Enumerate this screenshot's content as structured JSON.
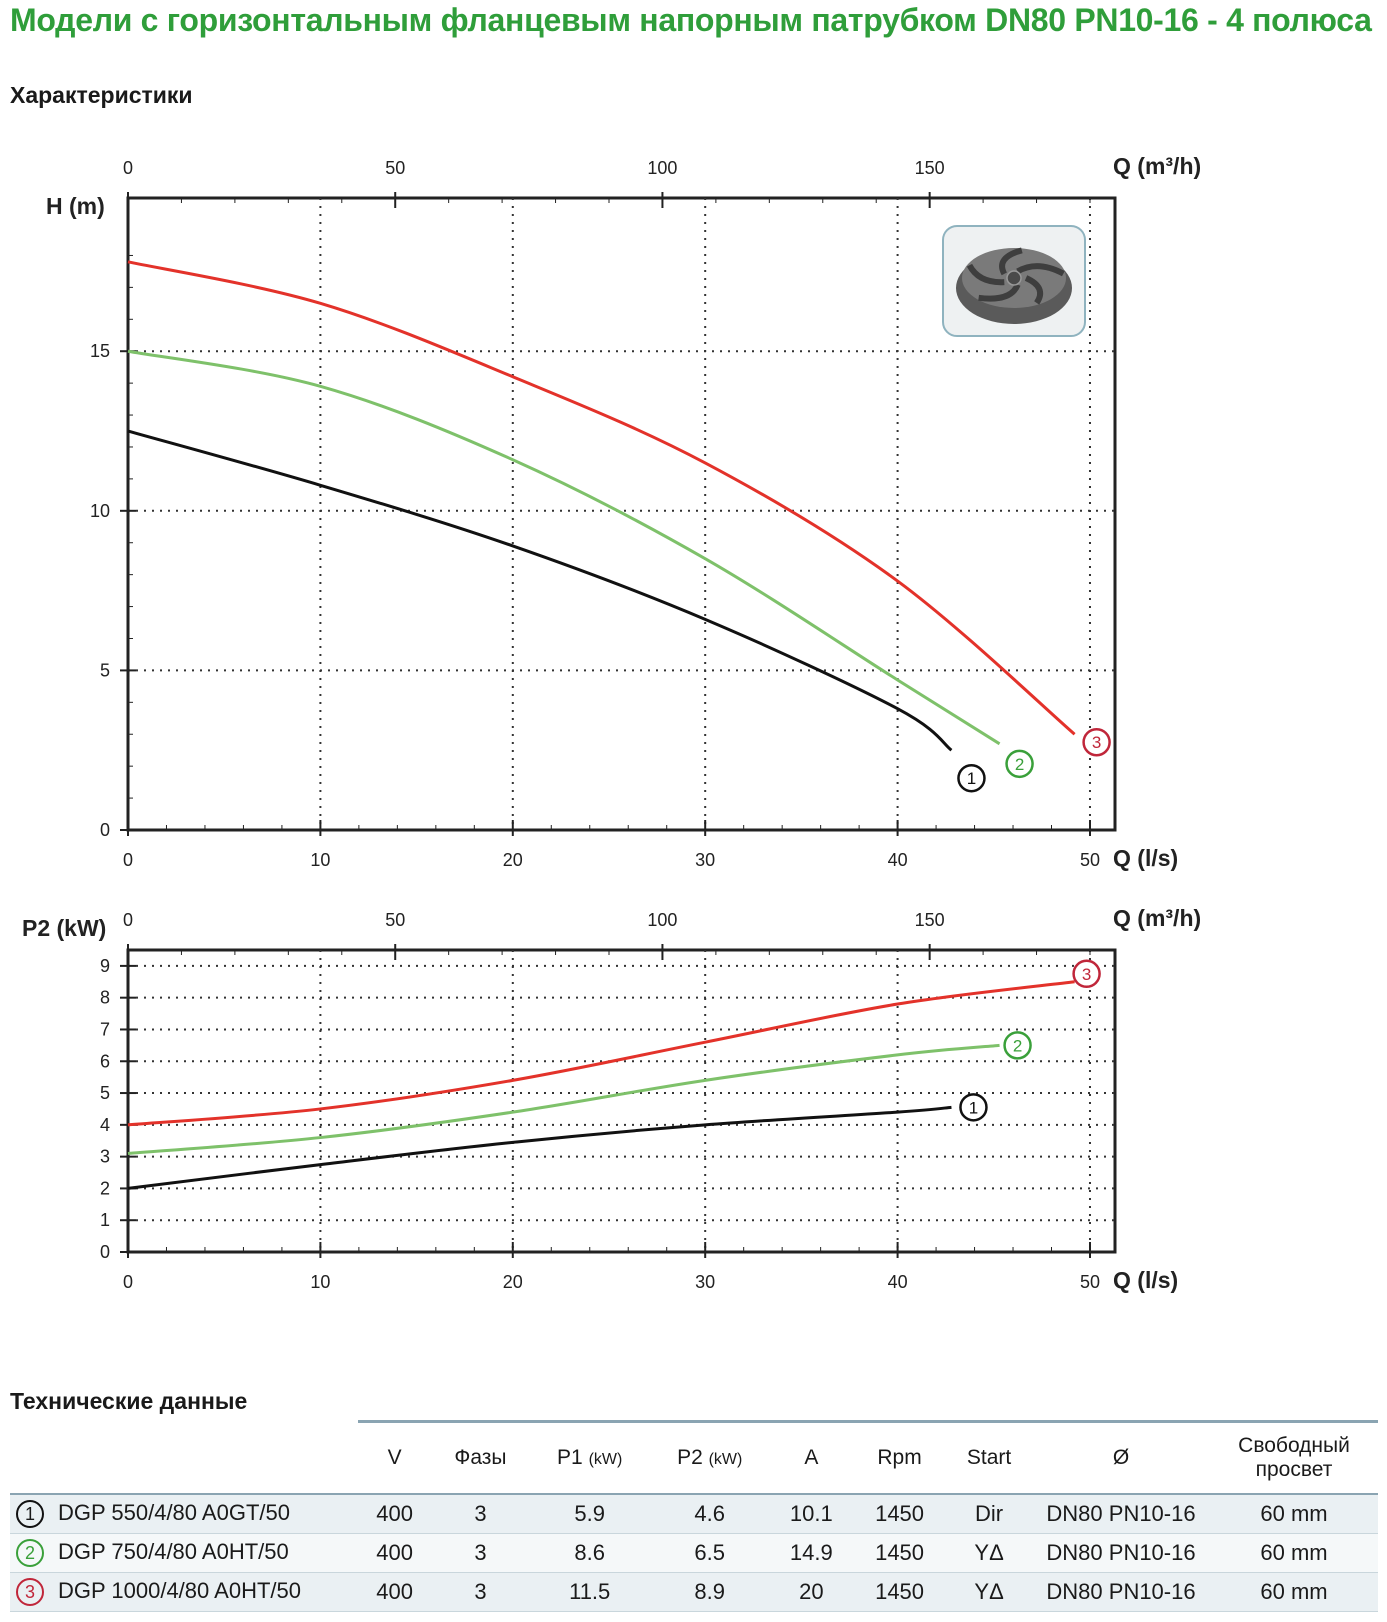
{
  "page": {
    "title": "Модели с горизонтальным фланцевым напорным патрубком DN80 PN10-16 - 4 полюса",
    "subtitle": "Характеристики",
    "tech_title": "Технические данные"
  },
  "colors": {
    "curve1": "#111111",
    "curve2": "#7ec16a",
    "curve3": "#e3322a",
    "title": "#2f9e3a",
    "badge2": "#3aa03a",
    "badge3": "#c0263a"
  },
  "chart_data": [
    {
      "type": "line",
      "title": "",
      "xlabel": "Q (l/s)",
      "x2label": "Q (m³/h)",
      "ylabel": "H (m)",
      "xlim": [
        0,
        51.3
      ],
      "ylim": [
        0,
        19.8
      ],
      "xticks": [
        0,
        10,
        20,
        30,
        40,
        50
      ],
      "x2ticks": [
        0,
        50,
        100,
        150
      ],
      "yticks": [
        0,
        5,
        10,
        15
      ],
      "grid": true,
      "series": [
        {
          "name": "1",
          "points": [
            [
              0,
              12.5
            ],
            [
              10,
              10.8
            ],
            [
              20,
              8.9
            ],
            [
              30,
              6.6
            ],
            [
              40,
              3.8
            ],
            [
              42.8,
              2.5
            ]
          ]
        },
        {
          "name": "2",
          "points": [
            [
              0,
              15.0
            ],
            [
              10,
              13.9
            ],
            [
              20,
              11.6
            ],
            [
              30,
              8.5
            ],
            [
              40,
              4.7
            ],
            [
              45.3,
              2.7
            ]
          ]
        },
        {
          "name": "3",
          "points": [
            [
              0,
              17.8
            ],
            [
              10,
              16.5
            ],
            [
              20,
              14.2
            ],
            [
              30,
              11.5
            ],
            [
              40,
              7.8
            ],
            [
              49.2,
              3.0
            ]
          ]
        }
      ]
    },
    {
      "type": "line",
      "title": "",
      "xlabel": "Q (l/s)",
      "x2label": "Q (m³/h)",
      "ylabel": "P2 (kW)",
      "xlim": [
        0,
        51.3
      ],
      "ylim": [
        0,
        9.5
      ],
      "xticks": [
        0,
        10,
        20,
        30,
        40,
        50
      ],
      "x2ticks": [
        0,
        50,
        100,
        150
      ],
      "yticks": [
        0,
        1,
        2,
        3,
        4,
        5,
        6,
        7,
        8,
        9
      ],
      "grid": true,
      "series": [
        {
          "name": "1",
          "points": [
            [
              0,
              2.0
            ],
            [
              10,
              2.75
            ],
            [
              20,
              3.45
            ],
            [
              30,
              4.0
            ],
            [
              40,
              4.4
            ],
            [
              42.8,
              4.55
            ]
          ]
        },
        {
          "name": "2",
          "points": [
            [
              0,
              3.1
            ],
            [
              10,
              3.6
            ],
            [
              20,
              4.4
            ],
            [
              30,
              5.4
            ],
            [
              40,
              6.2
            ],
            [
              45.3,
              6.5
            ]
          ]
        },
        {
          "name": "3",
          "points": [
            [
              0,
              4.0
            ],
            [
              10,
              4.5
            ],
            [
              20,
              5.4
            ],
            [
              30,
              6.6
            ],
            [
              40,
              7.8
            ],
            [
              49.2,
              8.5
            ]
          ]
        }
      ]
    }
  ],
  "table": {
    "headers": [
      "V",
      "Фазы",
      "P1",
      "P2",
      "A",
      "Rpm",
      "Start",
      "Ø",
      "Свободный просвет"
    ],
    "header_units": [
      "",
      "",
      "(kW)",
      "(kW)",
      "",
      "",
      "",
      "",
      ""
    ],
    "rows": [
      {
        "badge": "1",
        "model": "DGP 550/4/80 A0GT/50",
        "cells": [
          "400",
          "3",
          "5.9",
          "4.6",
          "10.1",
          "1450",
          "Dir",
          "DN80 PN10-16",
          "60 mm"
        ]
      },
      {
        "badge": "2",
        "model": "DGP 750/4/80 A0HT/50",
        "cells": [
          "400",
          "3",
          "8.6",
          "6.5",
          "14.9",
          "1450",
          "YΔ",
          "DN80 PN10-16",
          "60 mm"
        ]
      },
      {
        "badge": "3",
        "model": "DGP 1000/4/80 A0HT/50",
        "cells": [
          "400",
          "3",
          "11.5",
          "8.9",
          "20",
          "1450",
          "YΔ",
          "DN80 PN10-16",
          "60 mm"
        ]
      }
    ]
  }
}
